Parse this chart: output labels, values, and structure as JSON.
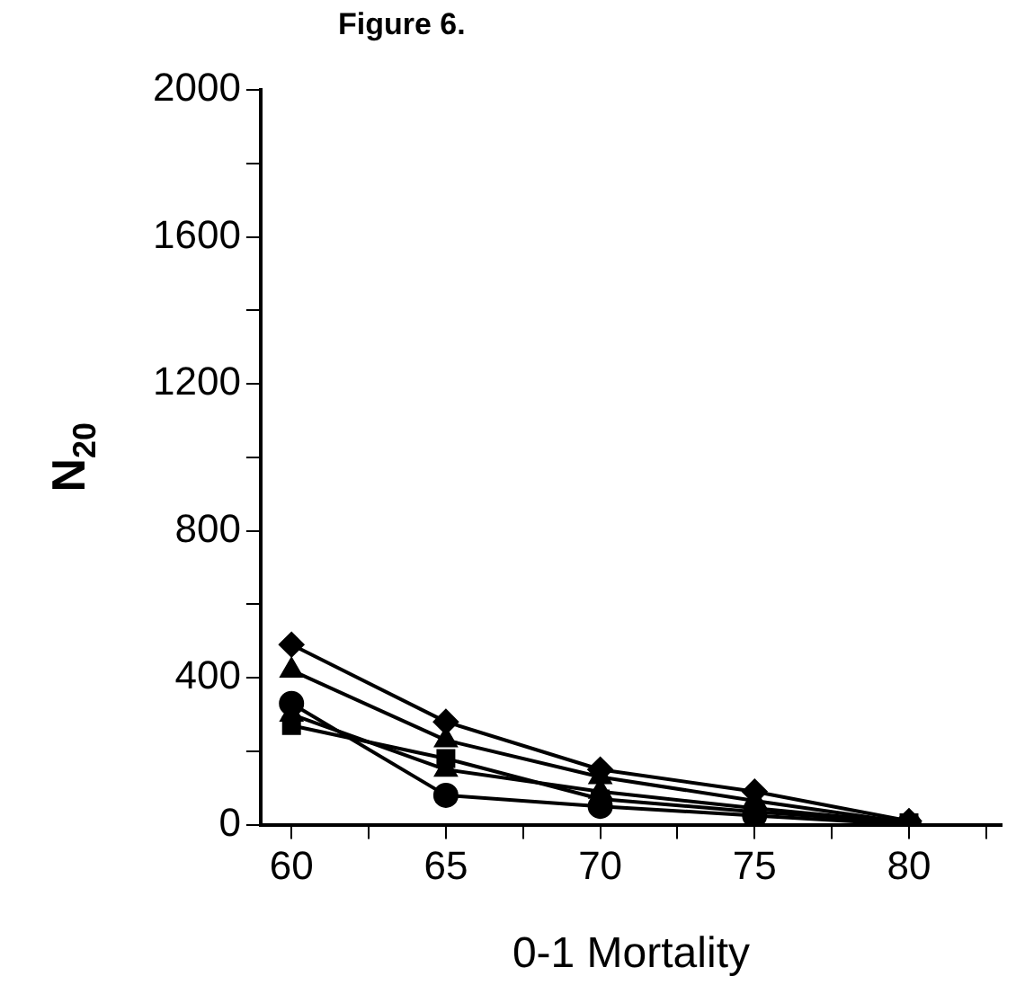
{
  "chart_data": {
    "type": "line",
    "title": "Figure 6.",
    "xlabel": "0-1 Mortality",
    "ylabel": "N$_{20}$",
    "x": [
      60,
      65,
      70,
      75,
      80
    ],
    "series": [
      {
        "color": "#000000",
        "marker": "diamond",
        "values": [
          490,
          280,
          150,
          90,
          10
        ]
      },
      {
        "color": "#000000",
        "marker": "triangle",
        "values": [
          420,
          230,
          130,
          65,
          5
        ]
      },
      {
        "color": "#000000",
        "marker": "triangle",
        "values": [
          300,
          150,
          90,
          45,
          5
        ]
      },
      {
        "color": "#000000",
        "marker": "circle",
        "values": [
          330,
          80,
          50,
          25,
          0
        ]
      },
      {
        "color": "#000000",
        "marker": "square",
        "values": [
          270,
          180,
          70,
          35,
          5
        ]
      }
    ],
    "xlim": [
      59,
      83
    ],
    "xticks": [
      60,
      {
        "value": 62.5,
        "label": null
      },
      65,
      {
        "value": 67.5,
        "label": null
      },
      70,
      {
        "value": 72.5,
        "label": null
      },
      75,
      {
        "value": 77.5,
        "label": null
      },
      80,
      {
        "value": 82.5,
        "label": null
      }
    ],
    "ylim": [
      0,
      2000
    ],
    "yticks": [
      0,
      {
        "value": 200,
        "label": null
      },
      400,
      {
        "value": 600,
        "label": null
      },
      800,
      {
        "value": 1000,
        "label": null
      },
      1200,
      {
        "value": 1400,
        "label": null
      },
      1600,
      {
        "value": 1800,
        "label": null
      },
      2000
    ],
    "grid": false,
    "legend": false,
    "line_style": "solid"
  }
}
